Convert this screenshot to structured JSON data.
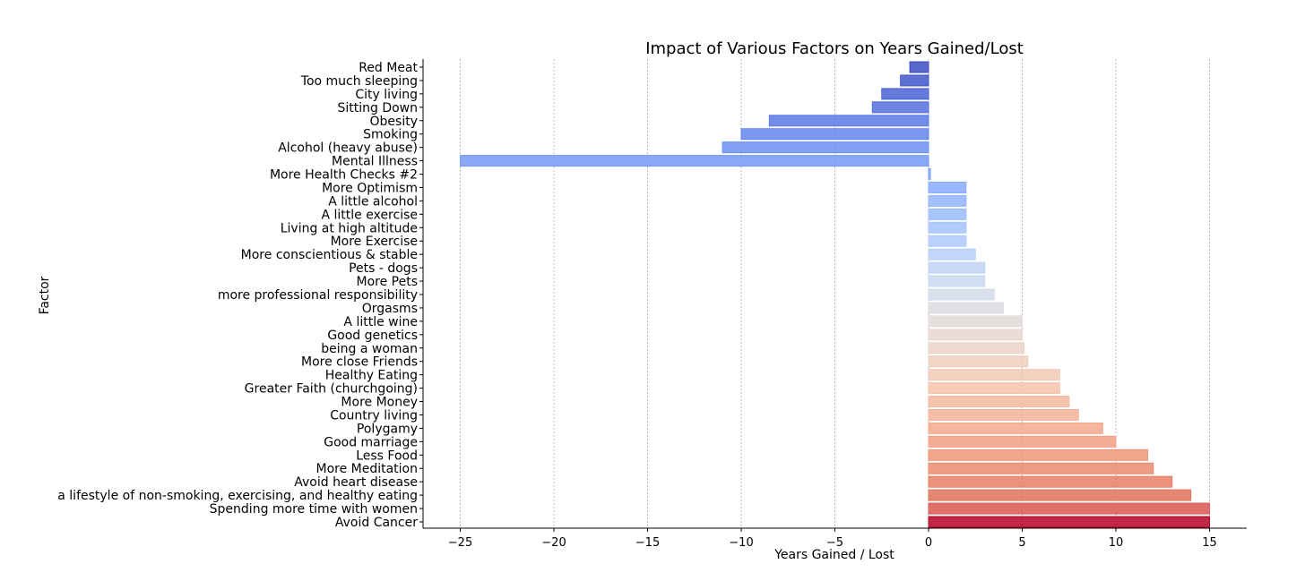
{
  "chart_data": {
    "type": "bar",
    "orientation": "horizontal",
    "title": "Impact of Various Factors on Years Gained/Lost",
    "xlabel": "Years Gained / Lost",
    "ylabel": "Factor",
    "xlim": [
      -27,
      17
    ],
    "xticks": [
      -25,
      -20,
      -15,
      -10,
      -5,
      0,
      5,
      10,
      15
    ],
    "xtick_labels": [
      "−25",
      "−20",
      "−15",
      "−10",
      "−5",
      "0",
      "5",
      "10",
      "15"
    ],
    "grid": "vertical dotted",
    "colormap": "coolwarm",
    "categories": [
      "Red Meat",
      "Too much sleeping",
      "City living",
      "Sitting Down",
      "Obesity",
      "Smoking",
      "Alcohol (heavy abuse)",
      "Mental Illness",
      "More Health Checks #2",
      "More Optimism",
      "A little alcohol",
      "A little exercise",
      "Living at high altitude",
      "More Exercise",
      "More conscientious & stable",
      "Pets - dogs",
      "More Pets",
      "more professional responsibility",
      "Orgasms",
      "A little wine",
      "Good genetics",
      "being a woman",
      "More close Friends",
      "Healthy Eating",
      "Greater Faith (churchgoing)",
      "More Money",
      "Country living",
      "Polygamy",
      "Good marriage",
      "Less Food",
      "More Meditation",
      "Avoid heart disease",
      "a lifestyle of non-smoking, exercising, and healthy eating",
      "Spending more time with women",
      "Avoid Cancer"
    ],
    "values": [
      -1,
      -1.5,
      -2.5,
      -3,
      -8.5,
      -10,
      -11,
      -25,
      0.1,
      2,
      2,
      2,
      2,
      2,
      2.5,
      3,
      3,
      3.5,
      4,
      5,
      5,
      5.1,
      5.3,
      7,
      7,
      7.5,
      8,
      9.3,
      10,
      11.7,
      12,
      13,
      14,
      15,
      15
    ],
    "colors": [
      "#3b4cc0",
      "#4257c9",
      "#4a63d3",
      "#536edd",
      "#5b7ae5",
      "#6485ec",
      "#6c8ff1",
      "#7699f6",
      "#7ea3f8",
      "#88abfd",
      "#92b4fe",
      "#9bbcff",
      "#a5c3fe",
      "#aec9fc",
      "#b7cff9",
      "#c0d4f5",
      "#c9d7f0",
      "#d1dae9",
      "#d9dce1",
      "#e0dbd8",
      "#e6d7cf",
      "#ebd3c6",
      "#efcebd",
      "#f2c8b4",
      "#f4c2aa",
      "#f5b9a0",
      "#f5b196",
      "#f4a88c",
      "#f29f82",
      "#ef9578",
      "#eb8a6e",
      "#e67f64",
      "#e0735a",
      "#d95750",
      "#b40426"
    ]
  }
}
